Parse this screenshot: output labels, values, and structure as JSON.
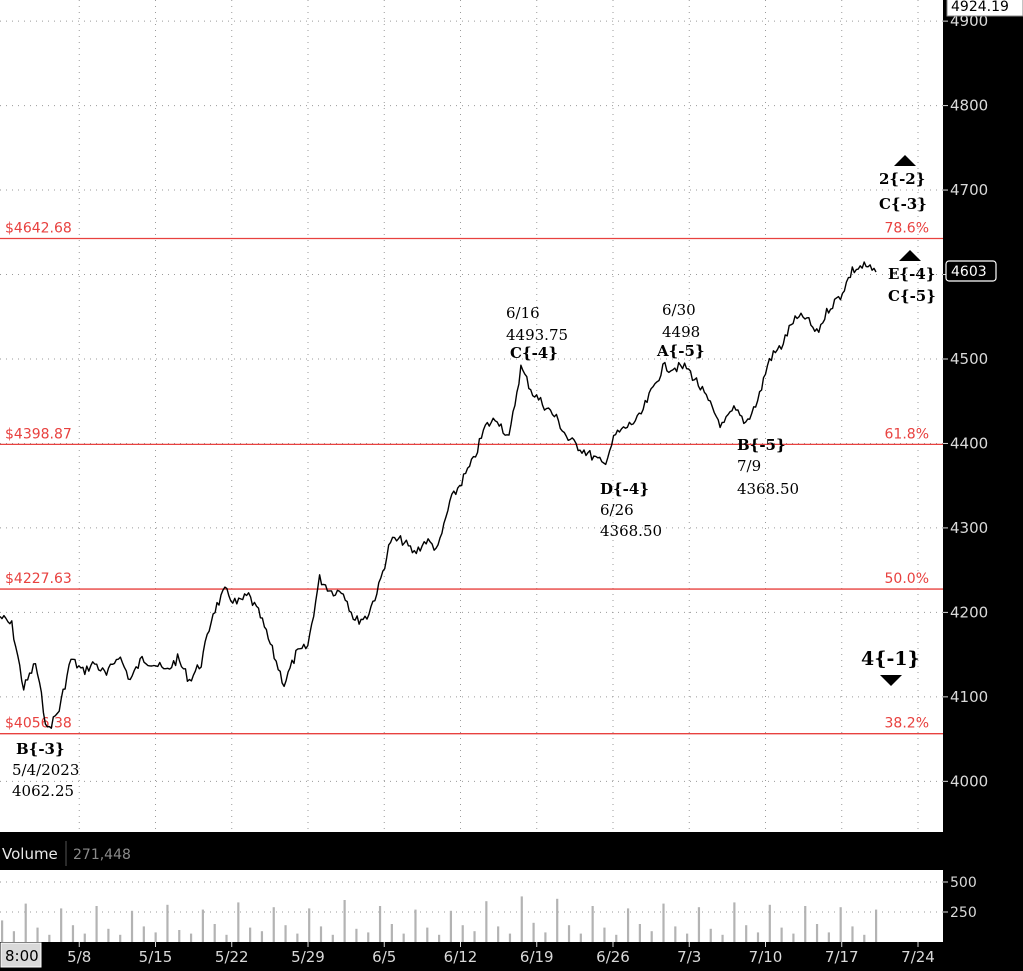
{
  "chart_data": {
    "type": "line",
    "price_axis": {
      "ticks": [
        "4900",
        "4800",
        "4700",
        "4600",
        "4500",
        "4400",
        "4300",
        "4200",
        "4100",
        "4000"
      ],
      "ylim": [
        3940,
        4925
      ]
    },
    "x_ticks": [
      "8:00",
      "5/8",
      "5/15",
      "5/22",
      "5/29",
      "6/5",
      "6/12",
      "6/19",
      "6/26",
      "7/3",
      "7/10",
      "7/17",
      "7/24"
    ],
    "series": [
      {
        "values": [
          4195,
          4185,
          4110,
          4140,
          4060,
          4085,
          4145,
          4130,
          4140,
          4125,
          4150,
          4120,
          4145,
          4140,
          4130,
          4145,
          4120,
          4140,
          4200,
          4225,
          4210,
          4220,
          4195,
          4155,
          4115,
          4150,
          4160,
          4240,
          4225,
          4225,
          4190,
          4195,
          4230,
          4285,
          4285,
          4270,
          4285,
          4275,
          4330,
          4355,
          4380,
          4420,
          4430,
          4405,
          4490,
          4460,
          4445,
          4430,
          4405,
          4395,
          4385,
          4375,
          4410,
          4420,
          4430,
          4460,
          4490,
          4490,
          4490,
          4470,
          4445,
          4420,
          4440,
          4425,
          4450,
          4500,
          4515,
          4545,
          4550,
          4530,
          4560,
          4575,
          4605,
          4610,
          4603
        ]
      }
    ],
    "volume": {
      "title": "Volume",
      "value_label": "271,448",
      "ticks": [
        "500",
        "250"
      ],
      "ylim": [
        0,
        600
      ],
      "values": [
        180,
        90,
        320,
        120,
        60,
        280,
        140,
        70,
        300,
        110,
        60,
        260,
        130,
        80,
        310,
        100,
        70,
        270,
        150,
        60,
        330,
        120,
        90,
        290,
        140,
        70,
        280,
        130,
        60,
        350,
        110,
        80,
        300,
        150,
        70,
        270,
        120,
        60,
        260,
        140,
        90,
        340,
        130,
        70,
        380,
        160,
        80,
        360,
        140,
        70,
        300,
        120,
        60,
        280,
        150,
        90,
        320,
        130,
        70,
        290,
        110,
        60,
        330,
        140,
        80,
        310,
        120,
        70,
        300,
        150,
        80,
        290,
        130,
        60,
        270
      ]
    },
    "fib_levels": [
      {
        "price": 4642.68,
        "price_label": "$4642.68",
        "pct_label": "78.6%"
      },
      {
        "price": 4398.87,
        "price_label": "$4398.87",
        "pct_label": "61.8%"
      },
      {
        "price": 4227.63,
        "price_label": "$4227.63",
        "pct_label": "50.0%"
      },
      {
        "price": 4056.38,
        "price_label": "$4056.38",
        "pct_label": "38.2%"
      }
    ],
    "price_tags": {
      "top": "4924.19",
      "last": "4603"
    },
    "annotations": [
      {
        "lines": [
          "B{-3}",
          "5/4/2023",
          "4062.25"
        ]
      },
      {
        "lines": [
          "6/16",
          "4493.75",
          "C{-4}"
        ]
      },
      {
        "lines": [
          "D{-4}",
          "6/26",
          "4368.50"
        ]
      },
      {
        "lines": [
          "6/30",
          "4498",
          "A{-5}"
        ]
      },
      {
        "lines": [
          "B{-5}",
          "7/9",
          "4368.50"
        ]
      },
      {
        "lines": [
          "2{-2}",
          "C{-3}"
        ]
      },
      {
        "lines": [
          "E{-4}",
          "C{-5}"
        ]
      },
      {
        "lines": [
          "4{-1}"
        ]
      }
    ],
    "colors": {
      "background": "#ffffff",
      "price_line": "#000000",
      "fib_line": "#e8413f",
      "axis_panel": "#000000",
      "volume_bar": "#b3b3b3"
    }
  }
}
